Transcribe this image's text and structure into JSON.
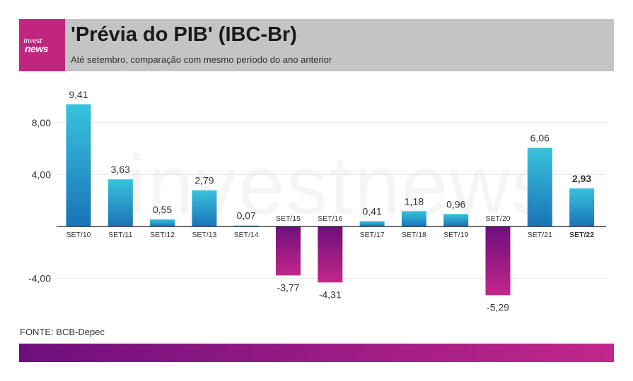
{
  "header": {
    "logo_top": "invest",
    "logo_bottom": "news",
    "title": "'Prévia do PIB' (IBC-Br)",
    "subtitle": "Até setembro, comparação com mesmo período do ano anterior"
  },
  "watermark": "investnews",
  "source": "FONTE: BCB-Depec",
  "colors": {
    "positive_top": "#38c3dc",
    "positive_bottom": "#1a73b8",
    "negative_top": "#6e0f7d",
    "negative_bottom": "#c2278a",
    "header_bg": "#c4c4c4",
    "logo_bg": "#c0267f"
  },
  "chart_data": {
    "type": "bar",
    "categories": [
      "SET/10",
      "SET/11",
      "SET/12",
      "SET/13",
      "SET/14",
      "SET/15",
      "SET/16",
      "SET/17",
      "SET/18",
      "SET/19",
      "SET/20",
      "SET/21",
      "SET/22"
    ],
    "values": [
      9.41,
      3.63,
      0.55,
      2.79,
      0.07,
      -3.77,
      -4.31,
      0.41,
      1.18,
      0.96,
      -5.29,
      6.06,
      2.93
    ],
    "value_labels": [
      "9,41",
      "3,63",
      "0,55",
      "2,79",
      "0,07",
      "-3,77",
      "-4,31",
      "0,41",
      "1,18",
      "0,96",
      "-5,29",
      "6,06",
      "2,93"
    ],
    "highlight_index": 12,
    "yticks": [
      8,
      4,
      -4
    ],
    "ytick_labels": [
      "8,00",
      "4,00",
      "-4,00"
    ],
    "ylim": [
      -6.5,
      10.5
    ],
    "grid": true
  }
}
